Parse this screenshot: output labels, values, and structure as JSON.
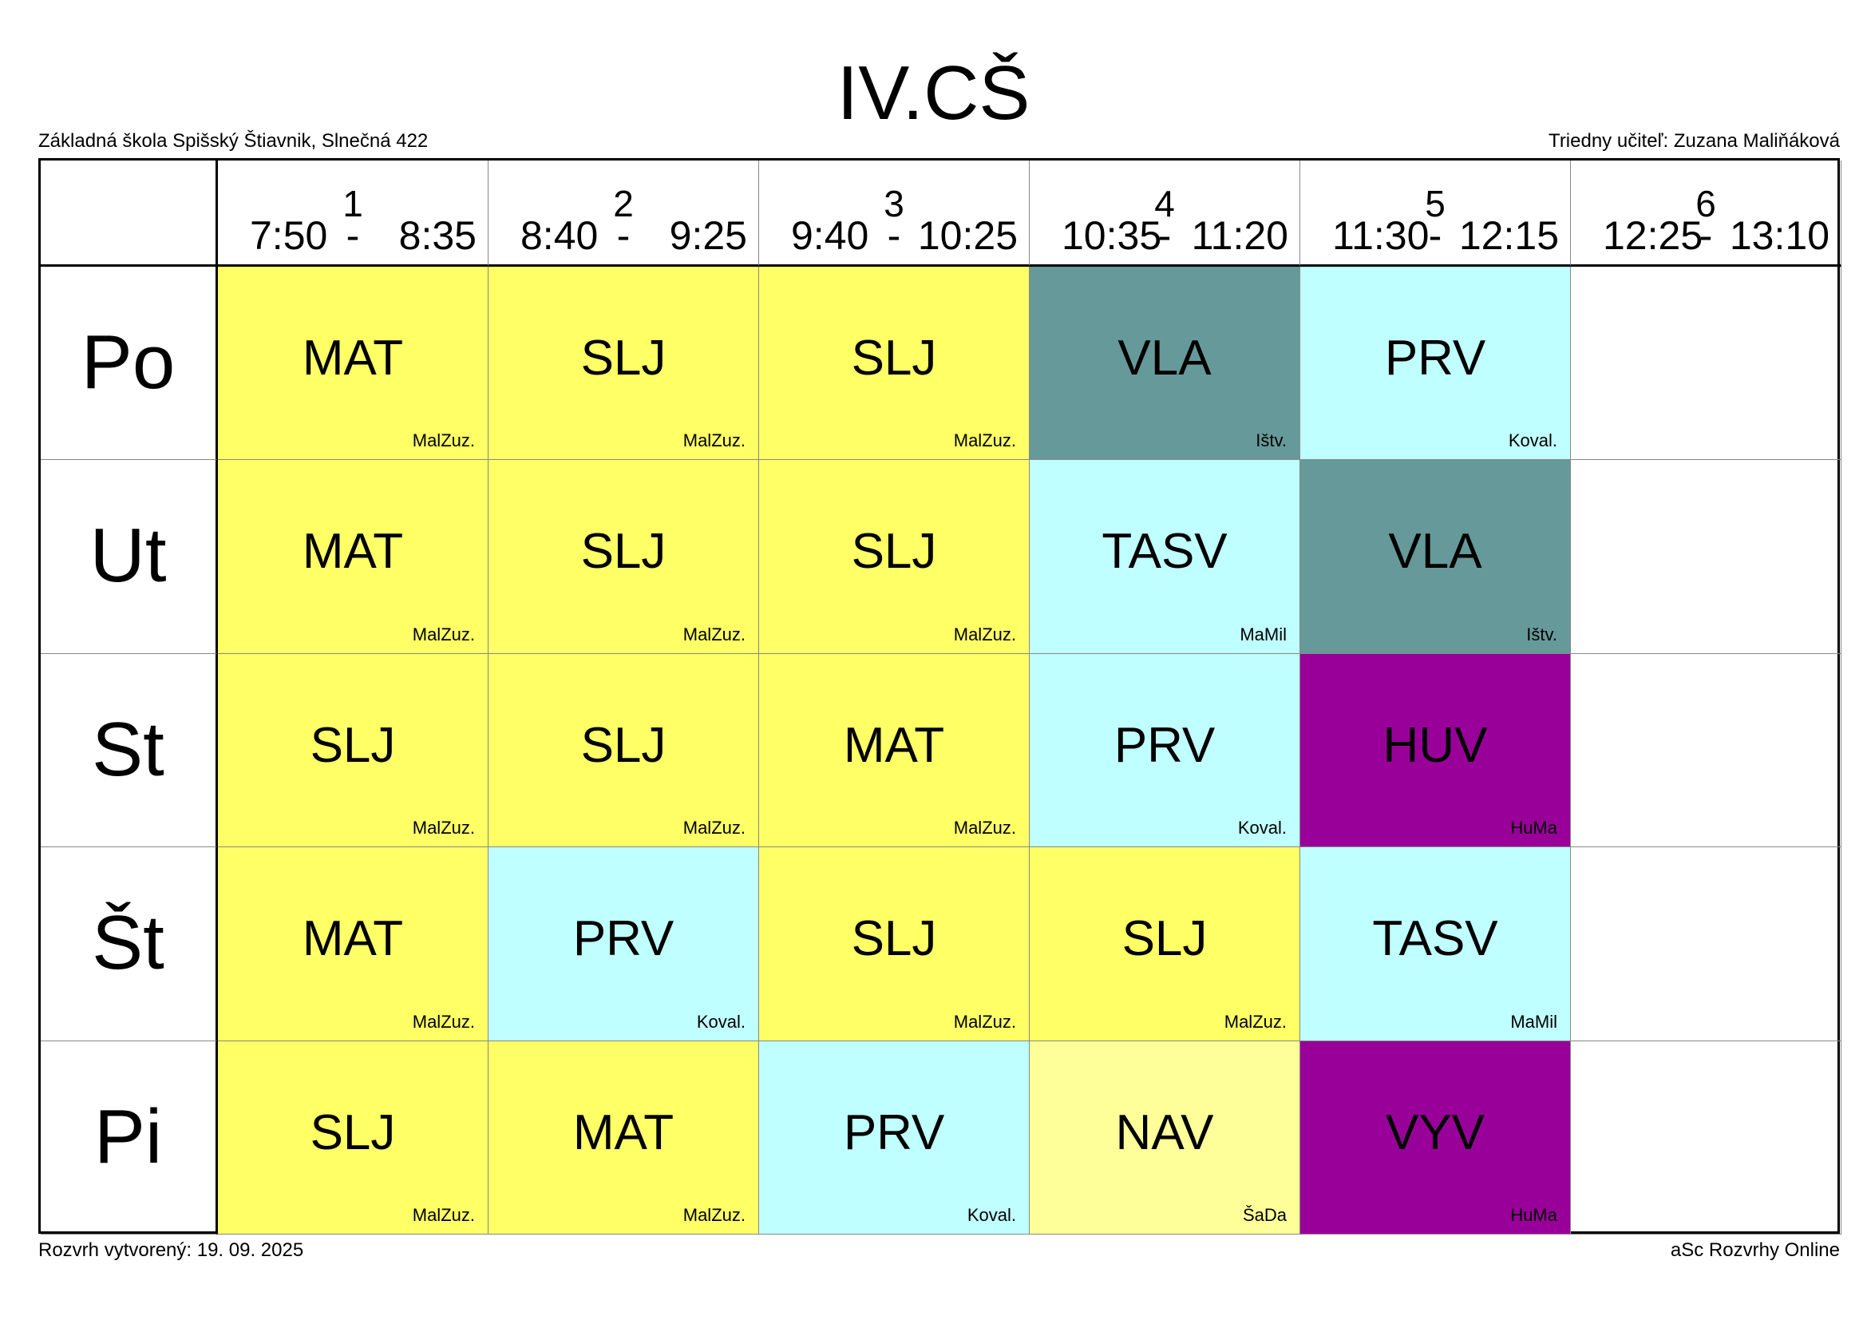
{
  "header": {
    "title": "IV.CŠ",
    "school": "Základná škola Spišský Štiavnik, Slnečná 422",
    "teacher": "Triedny učiteľ: Zuzana Maliňáková"
  },
  "periods": [
    {
      "number": "1",
      "start": "7:50",
      "end": "8:35"
    },
    {
      "number": "2",
      "start": "8:40",
      "end": "9:25"
    },
    {
      "number": "3",
      "start": "9:40",
      "end": "10:25"
    },
    {
      "number": "4",
      "start": "10:35",
      "end": "11:20"
    },
    {
      "number": "5",
      "start": "11:30",
      "end": "12:15"
    },
    {
      "number": "6",
      "start": "12:25",
      "end": "13:10"
    }
  ],
  "days": [
    {
      "name": "Po",
      "lessons": [
        {
          "subject": "MAT",
          "teacher": "MalZuz.",
          "color": "#ffff66"
        },
        {
          "subject": "SLJ",
          "teacher": "MalZuz.",
          "color": "#ffff66"
        },
        {
          "subject": "SLJ",
          "teacher": "MalZuz.",
          "color": "#ffff66"
        },
        {
          "subject": "VLA",
          "teacher": "Ištv.",
          "color": "#669999"
        },
        {
          "subject": "PRV",
          "teacher": "Koval.",
          "color": "#c0ffff"
        },
        null
      ]
    },
    {
      "name": "Ut",
      "lessons": [
        {
          "subject": "MAT",
          "teacher": "MalZuz.",
          "color": "#ffff66"
        },
        {
          "subject": "SLJ",
          "teacher": "MalZuz.",
          "color": "#ffff66"
        },
        {
          "subject": "SLJ",
          "teacher": "MalZuz.",
          "color": "#ffff66"
        },
        {
          "subject": "TASV",
          "teacher": "MaMil",
          "color": "#c0ffff"
        },
        {
          "subject": "VLA",
          "teacher": "Ištv.",
          "color": "#669999"
        },
        null
      ]
    },
    {
      "name": "St",
      "lessons": [
        {
          "subject": "SLJ",
          "teacher": "MalZuz.",
          "color": "#ffff66"
        },
        {
          "subject": "SLJ",
          "teacher": "MalZuz.",
          "color": "#ffff66"
        },
        {
          "subject": "MAT",
          "teacher": "MalZuz.",
          "color": "#ffff66"
        },
        {
          "subject": "PRV",
          "teacher": "Koval.",
          "color": "#c0ffff"
        },
        {
          "subject": "HUV",
          "teacher": "HuMa",
          "color": "#990099"
        },
        null
      ]
    },
    {
      "name": "Št",
      "lessons": [
        {
          "subject": "MAT",
          "teacher": "MalZuz.",
          "color": "#ffff66"
        },
        {
          "subject": "PRV",
          "teacher": "Koval.",
          "color": "#c0ffff"
        },
        {
          "subject": "SLJ",
          "teacher": "MalZuz.",
          "color": "#ffff66"
        },
        {
          "subject": "SLJ",
          "teacher": "MalZuz.",
          "color": "#ffff66"
        },
        {
          "subject": "TASV",
          "teacher": "MaMil",
          "color": "#c0ffff"
        },
        null
      ]
    },
    {
      "name": "Pi",
      "lessons": [
        {
          "subject": "SLJ",
          "teacher": "MalZuz.",
          "color": "#ffff66"
        },
        {
          "subject": "MAT",
          "teacher": "MalZuz.",
          "color": "#ffff66"
        },
        {
          "subject": "PRV",
          "teacher": "Koval.",
          "color": "#c0ffff"
        },
        {
          "subject": "NAV",
          "teacher": "ŠaDa",
          "color": "#ffff99"
        },
        {
          "subject": "VYV",
          "teacher": "HuMa",
          "color": "#990099"
        },
        null
      ]
    }
  ],
  "footer": {
    "created": "Rozvrh vytvorený: 19. 09. 2025",
    "software": "aSc Rozvrhy Online"
  }
}
